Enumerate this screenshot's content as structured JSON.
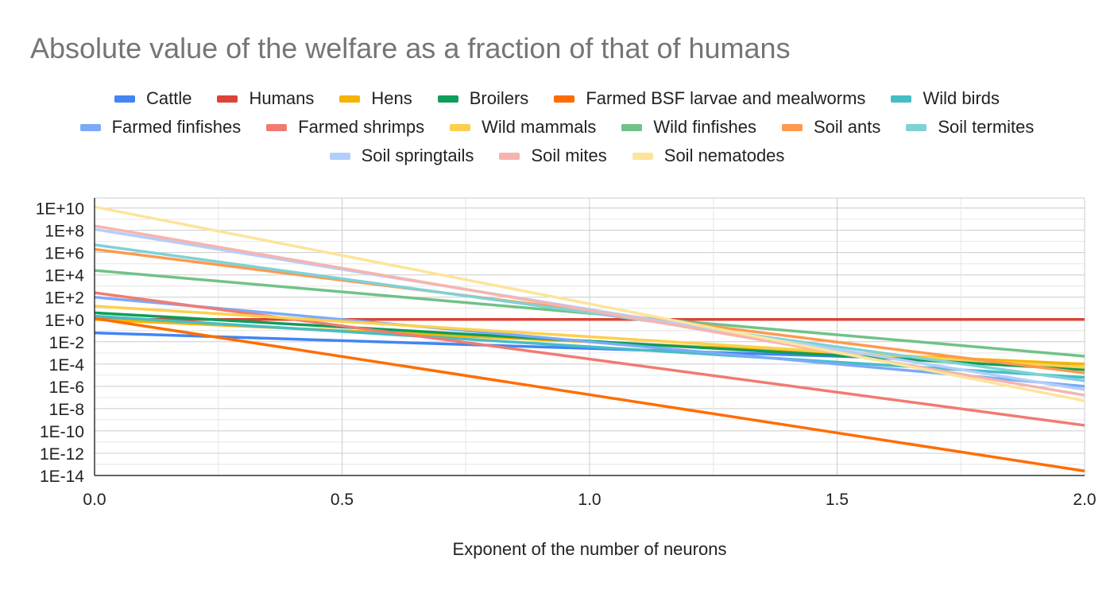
{
  "chart_data": {
    "type": "line",
    "title": "Absolute value of the welfare as a fraction of that of humans",
    "xlabel": "Exponent of the number of neurons",
    "ylabel": "",
    "y_scale": "log10",
    "xlim": [
      0,
      2
    ],
    "ylim_log10": [
      -14,
      10.9
    ],
    "x_ticks": [
      {
        "value": 0,
        "label": "0.0"
      },
      {
        "value": 0.5,
        "label": "0.5"
      },
      {
        "value": 1,
        "label": "1.0"
      },
      {
        "value": 1.5,
        "label": "1.5"
      },
      {
        "value": 2,
        "label": "2.0"
      }
    ],
    "y_ticks": [
      {
        "log10": 10,
        "label": "1E+10"
      },
      {
        "log10": 8,
        "label": "1E+8"
      },
      {
        "log10": 6,
        "label": "1E+6"
      },
      {
        "log10": 4,
        "label": "1E+4"
      },
      {
        "log10": 2,
        "label": "1E+2"
      },
      {
        "log10": 0,
        "label": "1E+0"
      },
      {
        "log10": -2,
        "label": "1E-2"
      },
      {
        "log10": -4,
        "label": "1E-4"
      },
      {
        "log10": -6,
        "label": "1E-6"
      },
      {
        "log10": -8,
        "label": "1E-8"
      },
      {
        "log10": -10,
        "label": "1E-10"
      },
      {
        "log10": -12,
        "label": "1E-12"
      },
      {
        "log10": -14,
        "label": "1E-14"
      }
    ],
    "x": [
      0,
      2
    ],
    "series": [
      {
        "name": "Cattle",
        "color": "#4285f4",
        "log10_values": [
          -1.2,
          -4.0
        ]
      },
      {
        "name": "Humans",
        "color": "#db4437",
        "log10_values": [
          0.0,
          0.0
        ]
      },
      {
        "name": "Hens",
        "color": "#f4b400",
        "log10_values": [
          0.0,
          -4.0
        ]
      },
      {
        "name": "Broilers",
        "color": "#0f9d58",
        "log10_values": [
          0.6,
          -4.5
        ]
      },
      {
        "name": "Farmed BSF larvae and mealworms",
        "color": "#ff6d01",
        "log10_values": [
          0.1,
          -13.6
        ]
      },
      {
        "name": "Wild birds",
        "color": "#46bdc6",
        "log10_values": [
          0.3,
          -5.2
        ]
      },
      {
        "name": "Farmed finfishes",
        "color": "#7baaf7",
        "log10_values": [
          2.0,
          -6.0
        ]
      },
      {
        "name": "Farmed shrimps",
        "color": "#f07b72",
        "log10_values": [
          2.4,
          -9.5
        ]
      },
      {
        "name": "Wild mammals",
        "color": "#fcd04f",
        "log10_values": [
          1.2,
          -4.3
        ]
      },
      {
        "name": "Wild finfishes",
        "color": "#71c287",
        "log10_values": [
          4.4,
          -3.3
        ]
      },
      {
        "name": "Soil ants",
        "color": "#ff994d",
        "log10_values": [
          6.3,
          -4.8
        ]
      },
      {
        "name": "Soil termites",
        "color": "#7ed1d7",
        "log10_values": [
          6.7,
          -5.5
        ]
      },
      {
        "name": "Soil springtails",
        "color": "#b3cefb",
        "log10_values": [
          8.1,
          -6.3
        ]
      },
      {
        "name": "Soil mites",
        "color": "#f7b4ae",
        "log10_values": [
          8.4,
          -6.8
        ]
      },
      {
        "name": "Soil nematodes",
        "color": "#fde49b",
        "log10_values": [
          10.1,
          -7.3
        ]
      }
    ]
  }
}
